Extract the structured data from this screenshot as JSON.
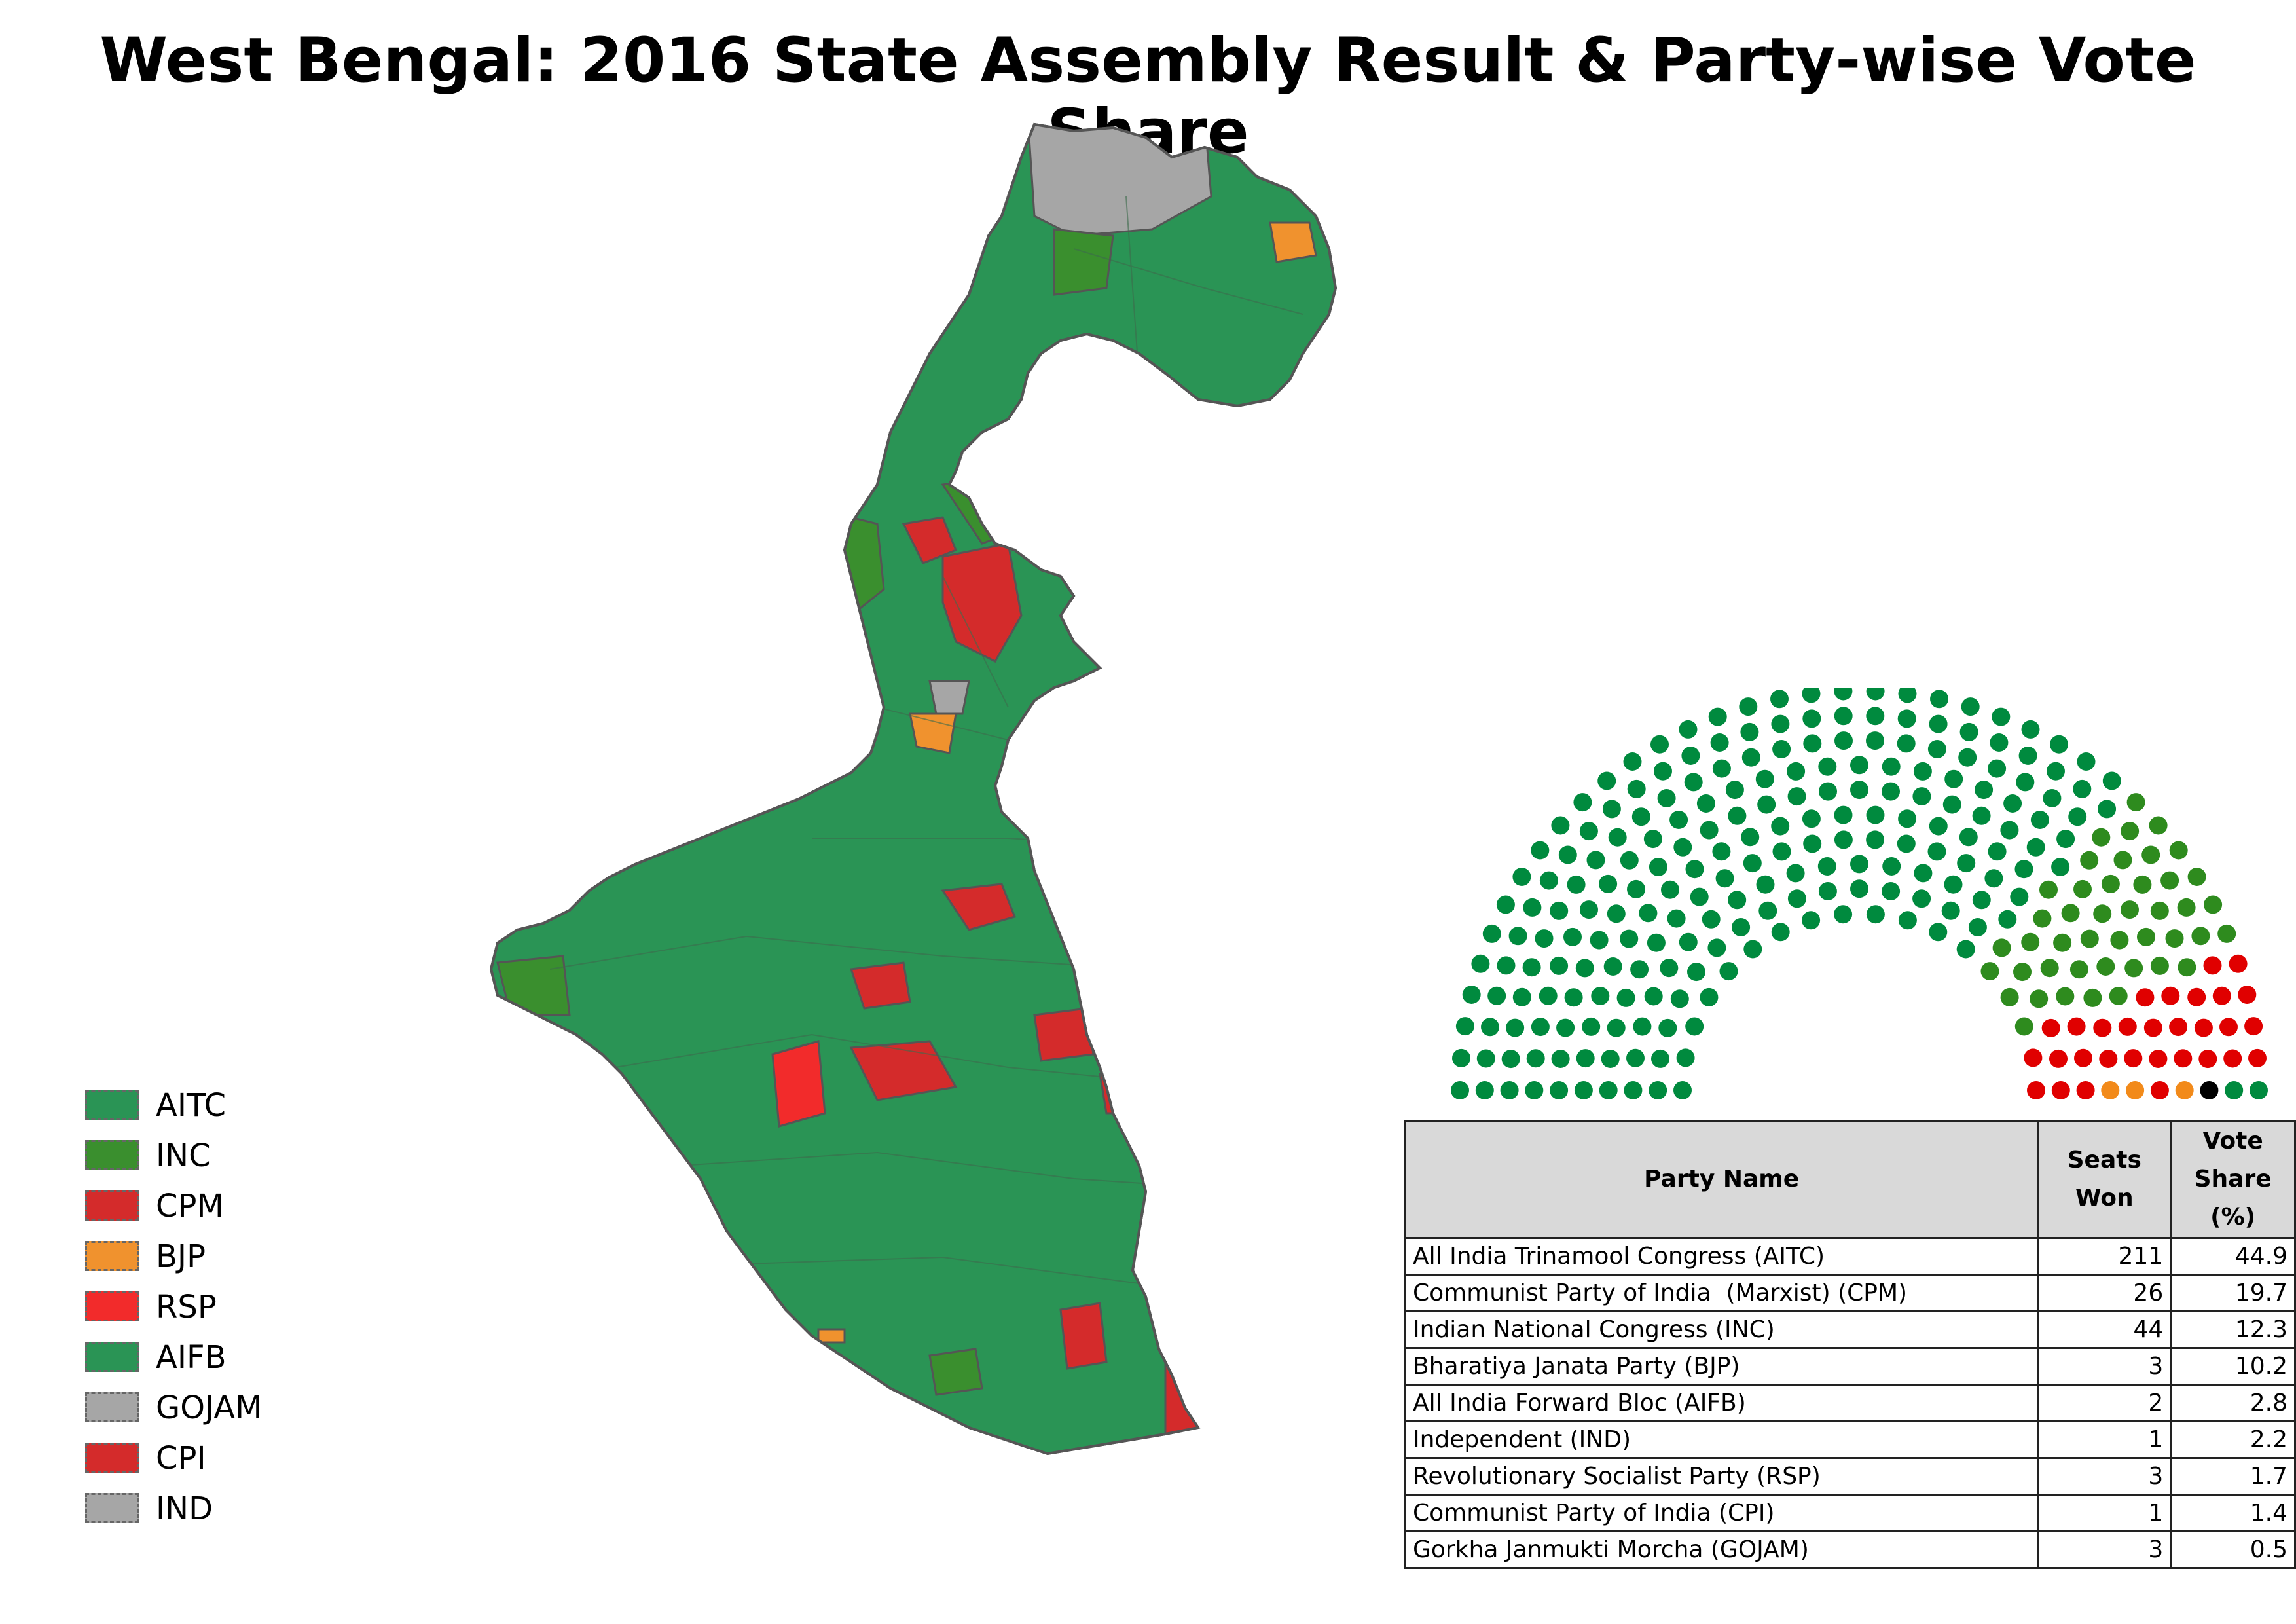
{
  "title": "West Bengal: 2016 State Assembly Result & Party-wise Vote Share",
  "legend": [
    {
      "label": "AITC",
      "color": "#2a9455"
    },
    {
      "label": "INC",
      "color": "#3a8f2e"
    },
    {
      "label": "CPM",
      "color": "#d42b2b"
    },
    {
      "label": "BJP",
      "color": "#f0922e"
    },
    {
      "label": "RSP",
      "color": "#f22b2b"
    },
    {
      "label": "AIFB",
      "color": "#2a9455"
    },
    {
      "label": "GOJAM",
      "color": "#a6a6a6"
    },
    {
      "label": "CPI",
      "color": "#d42b2b"
    },
    {
      "label": "IND",
      "color": "#a6a6a6"
    }
  ],
  "parliament": {
    "colors": {
      "AITC": "#008a3e",
      "INC": "#2e8b1e",
      "CPM": "#e00000",
      "BJP": "#f28a1a",
      "AIFB": "#008a3e",
      "IND": "#000000",
      "RSP": "#e00000",
      "CPI": "#e00000",
      "GOJAM": "#008a3e"
    }
  },
  "table": {
    "headers": {
      "party": "Party Name",
      "seats_line1": "Seats",
      "seats_line2": "Won",
      "vote_line1": "Vote",
      "vote_line2": "Share (%)"
    },
    "rows": [
      {
        "party": "All India Trinamool Congress (AITC)",
        "seats": "211",
        "vote": "44.9"
      },
      {
        "party": "Communist Party of India  (Marxist) (CPM)",
        "seats": "26",
        "vote": "19.7"
      },
      {
        "party": "Indian National Congress (INC)",
        "seats": "44",
        "vote": "12.3"
      },
      {
        "party": "Bharatiya Janata Party (BJP)",
        "seats": "3",
        "vote": "10.2"
      },
      {
        "party": "All India Forward Bloc (AIFB)",
        "seats": "2",
        "vote": "2.8"
      },
      {
        "party": "Independent (IND)",
        "seats": "1",
        "vote": "2.2"
      },
      {
        "party": "Revolutionary Socialist Party (RSP)",
        "seats": "3",
        "vote": "1.7"
      },
      {
        "party": "Communist Party of India (CPI)",
        "seats": "1",
        "vote": "1.4"
      },
      {
        "party": "Gorkha Janmukti Morcha (GOJAM)",
        "seats": "3",
        "vote": "0.5"
      }
    ]
  }
}
